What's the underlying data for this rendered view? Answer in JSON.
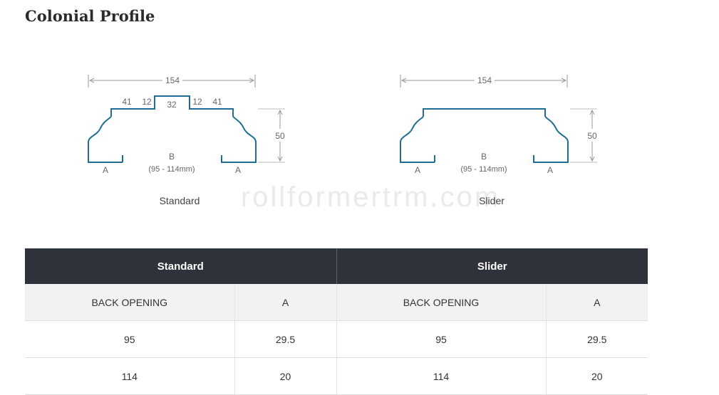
{
  "page": {
    "title": "Colonial Profile",
    "watermark": "rollformertrm.com"
  },
  "diagrams": {
    "standard": {
      "caption": "Standard",
      "overall_width": "154",
      "height": "50",
      "segments": [
        "41",
        "12",
        "32",
        "12",
        "41"
      ],
      "back_label": "B",
      "back_range": "(95 - 114mm)",
      "leg_label": "A"
    },
    "slider": {
      "caption": "Slider",
      "overall_width": "154",
      "height": "50",
      "back_label": "B",
      "back_range": "(95 - 114mm)",
      "leg_label": "A"
    }
  },
  "table": {
    "groups": [
      "Standard",
      "Slider"
    ],
    "subheaders": [
      "BACK OPENING",
      "A",
      "BACK OPENING",
      "A"
    ],
    "rows": [
      [
        "95",
        "29.5",
        "95",
        "29.5"
      ],
      [
        "114",
        "20",
        "114",
        "20"
      ]
    ]
  },
  "colors": {
    "profile_stroke": "#1c6e93",
    "dimension_line": "#999999",
    "header_bg": "#2e333b",
    "subheader_bg": "#f2f2f4"
  }
}
